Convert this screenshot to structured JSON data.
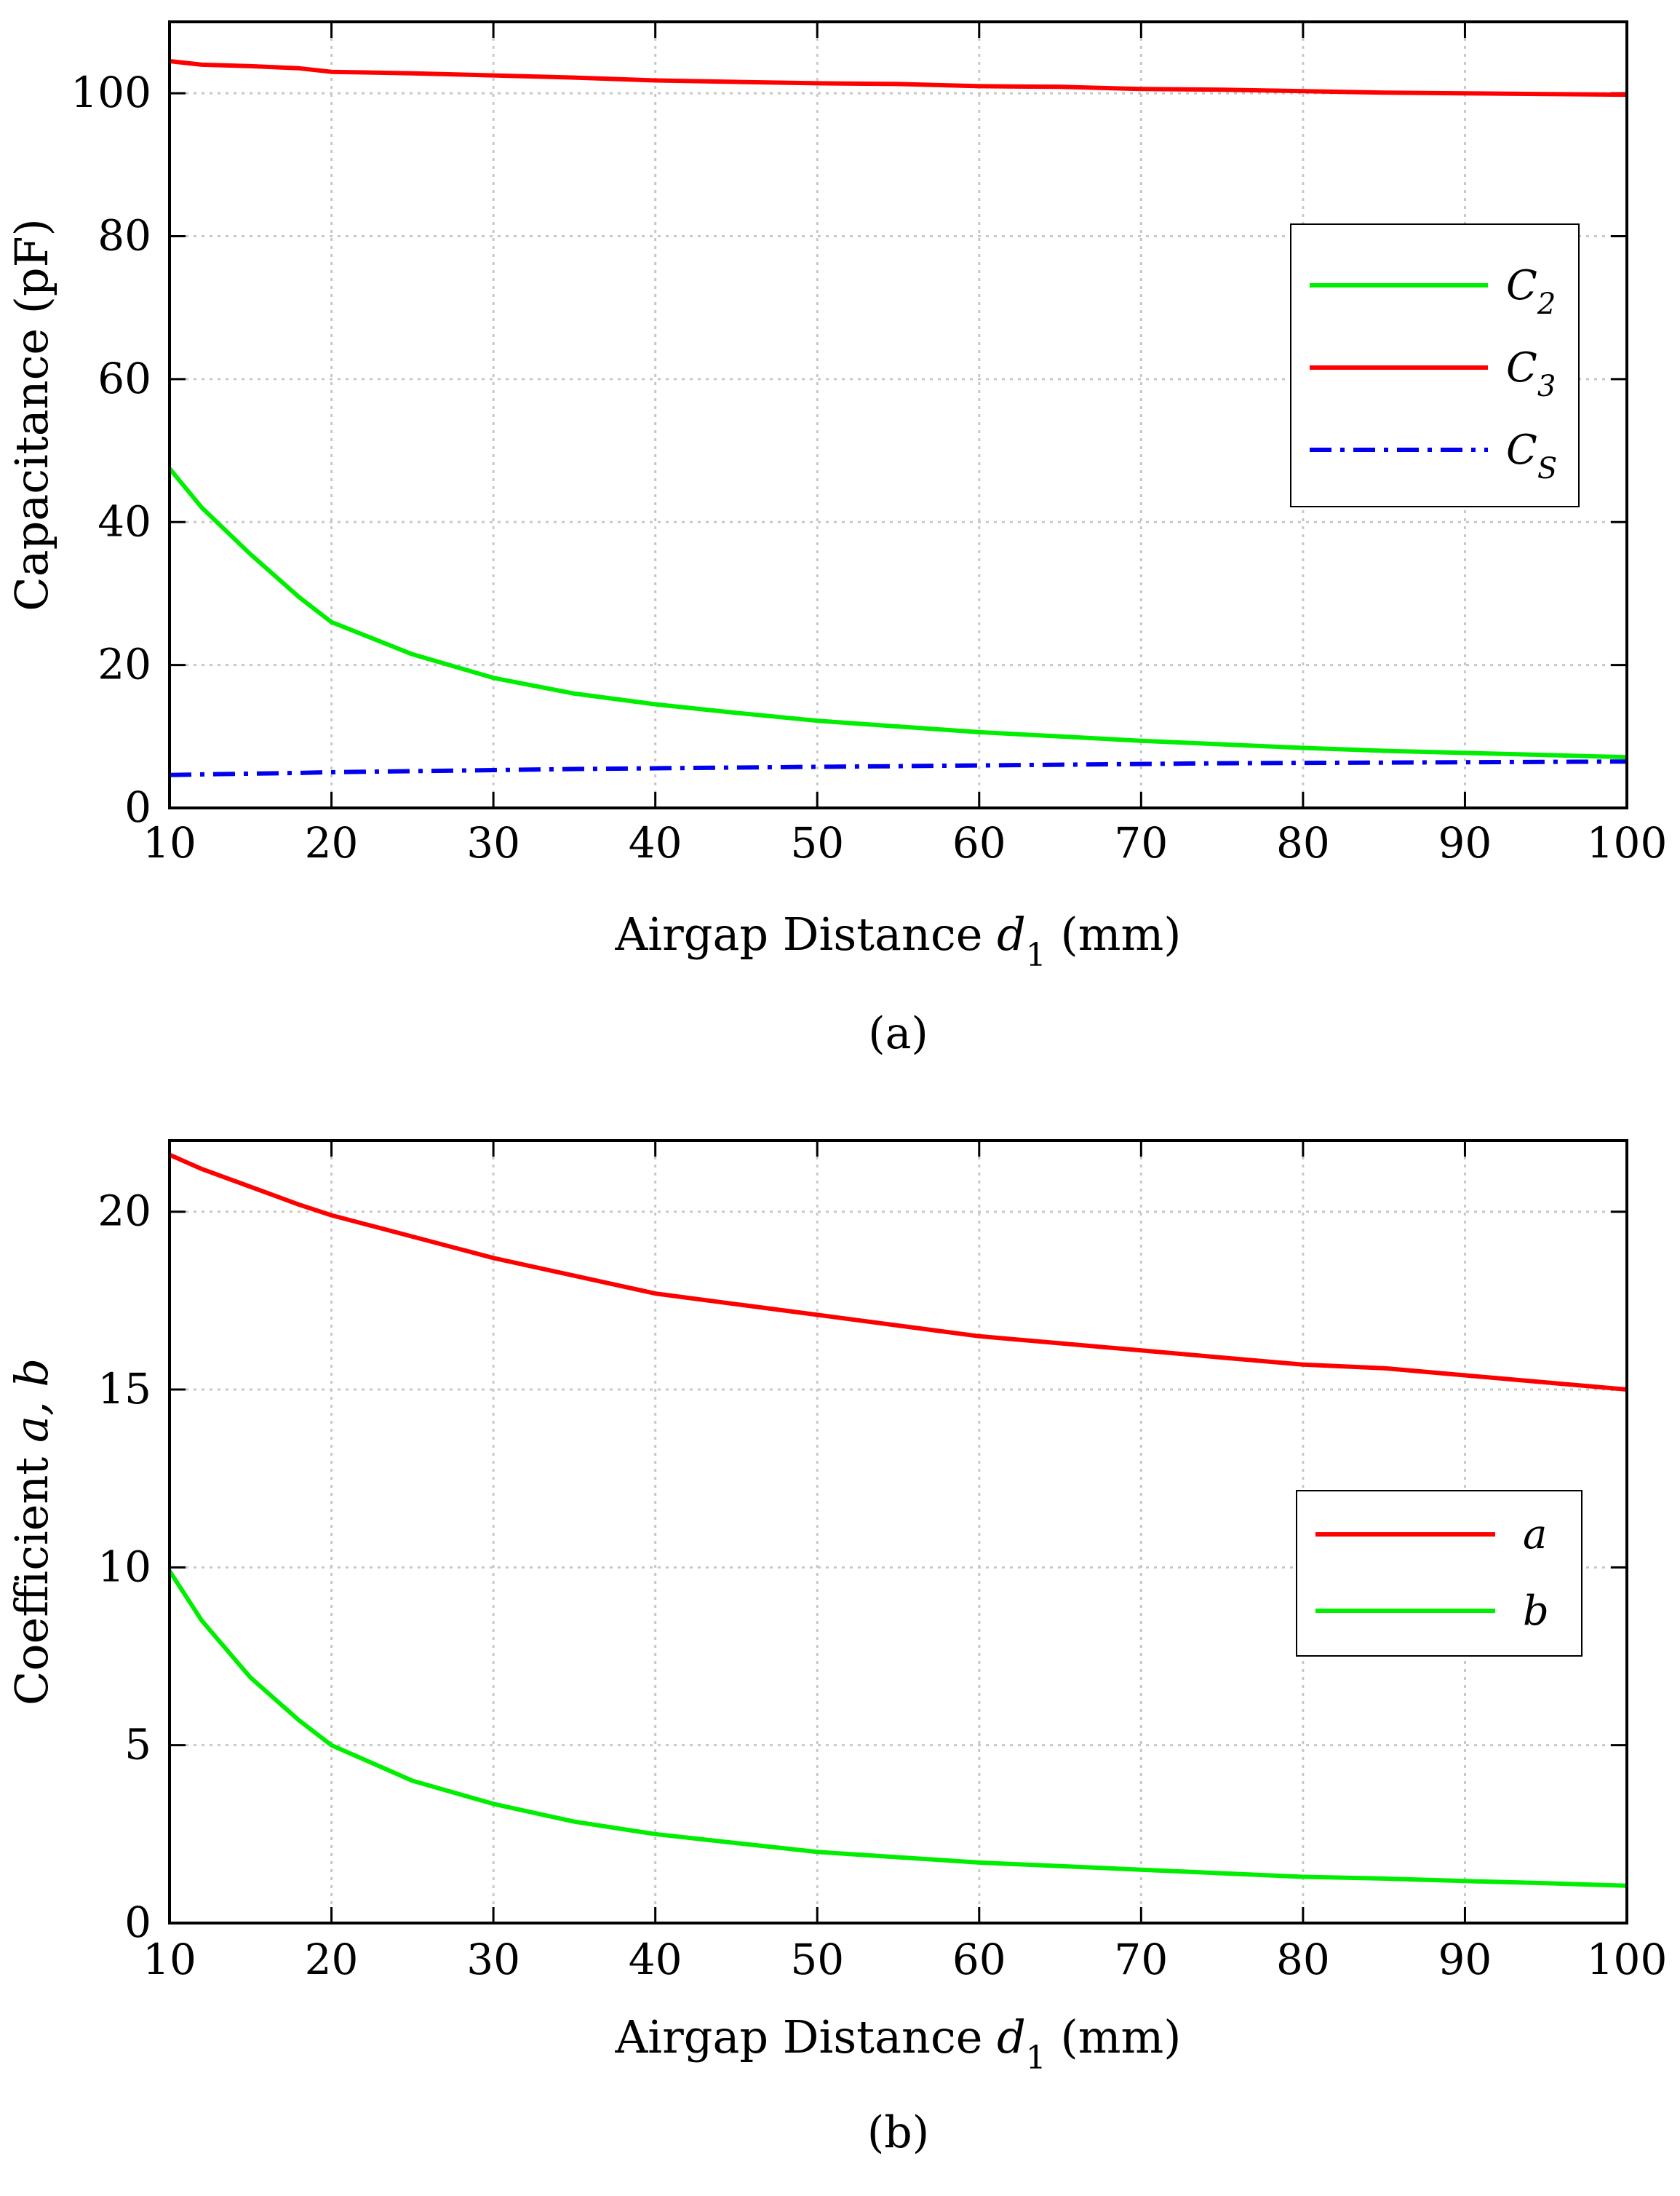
{
  "chart_data": [
    {
      "type": "line",
      "panel_label": "(a)",
      "title": "",
      "xlabel": "Airgap Distance",
      "xlabel_symbol": "d",
      "xlabel_sub": "1",
      "xlabel_unit": "(mm)",
      "ylabel": "Capacitance (pF)",
      "xlim": [
        10,
        100
      ],
      "ylim": [
        0,
        110
      ],
      "xticks": [
        10,
        20,
        30,
        40,
        50,
        60,
        70,
        80,
        90,
        100
      ],
      "yticks": [
        0,
        20,
        40,
        60,
        80,
        100
      ],
      "grid": true,
      "legend_position": "right",
      "x": [
        10,
        12,
        15,
        18,
        20,
        25,
        30,
        35,
        40,
        45,
        50,
        55,
        60,
        65,
        70,
        75,
        80,
        85,
        90,
        95,
        100
      ],
      "series": [
        {
          "name": "C2",
          "label_base": "C",
          "label_sub": "2",
          "color": "#00ee00",
          "dash": "solid",
          "values": [
            47.5,
            42.0,
            35.5,
            29.5,
            26.0,
            21.5,
            18.2,
            16.0,
            14.5,
            13.3,
            12.2,
            11.4,
            10.6,
            10.0,
            9.4,
            8.9,
            8.4,
            8.0,
            7.7,
            7.4,
            7.1
          ]
        },
        {
          "name": "C3",
          "label_base": "C",
          "label_sub": "3",
          "color": "#ff0000",
          "dash": "solid",
          "values": [
            104.5,
            104.0,
            103.8,
            103.5,
            103.0,
            102.8,
            102.5,
            102.2,
            101.8,
            101.6,
            101.4,
            101.3,
            101.0,
            100.9,
            100.6,
            100.5,
            100.3,
            100.1,
            100.0,
            99.9,
            99.8
          ]
        },
        {
          "name": "CS",
          "label_base": "C",
          "label_sub": "S",
          "color": "#0000ee",
          "dash": "dashdot",
          "values": [
            4.6,
            4.7,
            4.8,
            4.9,
            5.0,
            5.15,
            5.3,
            5.45,
            5.55,
            5.65,
            5.75,
            5.85,
            5.95,
            6.05,
            6.15,
            6.25,
            6.3,
            6.35,
            6.4,
            6.45,
            6.5
          ]
        }
      ]
    },
    {
      "type": "line",
      "panel_label": "(b)",
      "title": "",
      "xlabel": "Airgap Distance",
      "xlabel_symbol": "d",
      "xlabel_sub": "1",
      "xlabel_unit": "(mm)",
      "ylabel": "Coefficient",
      "ylabel_symbols": "a, b",
      "xlim": [
        10,
        100
      ],
      "ylim": [
        0,
        22
      ],
      "xticks": [
        10,
        20,
        30,
        40,
        50,
        60,
        70,
        80,
        90,
        100
      ],
      "yticks": [
        0,
        5,
        10,
        15,
        20
      ],
      "grid": true,
      "legend_position": "right",
      "x": [
        10,
        12,
        15,
        18,
        20,
        25,
        30,
        35,
        40,
        45,
        50,
        55,
        60,
        65,
        70,
        75,
        80,
        85,
        90,
        95,
        100
      ],
      "series": [
        {
          "name": "a",
          "label_base": "a",
          "label_sub": "",
          "color": "#ff0000",
          "dash": "solid",
          "values": [
            21.6,
            21.2,
            20.7,
            20.2,
            19.9,
            19.3,
            18.7,
            18.2,
            17.7,
            17.4,
            17.1,
            16.8,
            16.5,
            16.3,
            16.1,
            15.9,
            15.7,
            15.6,
            15.4,
            15.2,
            15.0
          ]
        },
        {
          "name": "b",
          "label_base": "b",
          "label_sub": "",
          "color": "#00ee00",
          "dash": "solid",
          "values": [
            9.9,
            8.5,
            6.9,
            5.7,
            5.0,
            4.0,
            3.35,
            2.85,
            2.5,
            2.25,
            2.0,
            1.85,
            1.7,
            1.6,
            1.5,
            1.4,
            1.3,
            1.25,
            1.18,
            1.12,
            1.05
          ]
        }
      ]
    }
  ]
}
